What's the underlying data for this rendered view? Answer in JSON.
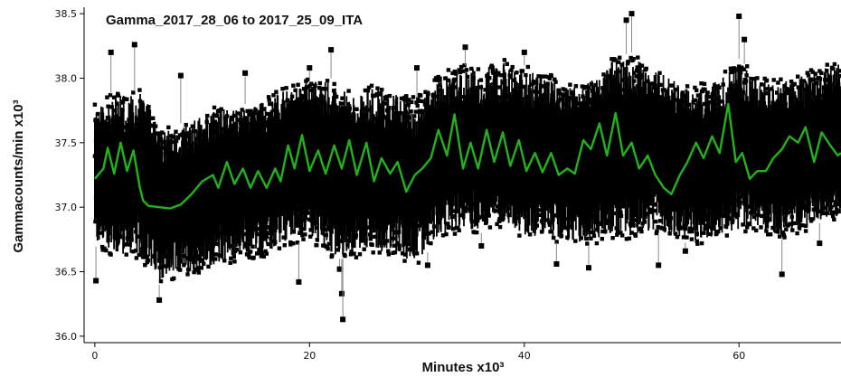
{
  "chart_data": {
    "type": "line",
    "title": "Gamma_2017_28_06 to 2017_25_09_ITA",
    "xlabel": "Minutes x10³",
    "ylabel": "Gammacounts/min x10³",
    "xlim": [
      -1,
      69.5
    ],
    "ylim": [
      35.95,
      38.55
    ],
    "xticks": [
      "0",
      "20",
      "40",
      "60"
    ],
    "xtick_values": [
      0,
      20,
      40,
      60
    ],
    "yticks": [
      "36.0",
      "36.5",
      "37.0",
      "37.5",
      "38.0",
      "38.5"
    ],
    "ytick_values": [
      36.0,
      36.5,
      37.0,
      37.5,
      38.0,
      38.5
    ],
    "grid": false,
    "series": [
      {
        "kind": "raw-measurements",
        "color": "#000000",
        "marker": "square",
        "envelope_x": [
          0,
          2,
          4,
          4.5,
          6,
          8,
          10,
          12,
          14,
          16,
          18,
          20,
          22,
          24,
          26,
          28,
          30,
          32,
          34,
          36,
          38,
          40,
          42,
          44,
          46,
          48,
          50,
          52,
          54,
          56,
          58,
          60,
          62,
          64,
          66,
          68,
          69.5
        ],
        "envelope_low": [
          36.7,
          36.6,
          36.6,
          36.55,
          36.4,
          36.45,
          36.5,
          36.55,
          36.6,
          36.6,
          36.7,
          36.75,
          36.6,
          36.6,
          36.65,
          36.6,
          36.55,
          36.75,
          36.8,
          36.8,
          36.85,
          36.75,
          36.75,
          36.7,
          36.7,
          36.75,
          36.75,
          36.8,
          36.75,
          36.7,
          36.75,
          36.8,
          36.8,
          36.75,
          36.8,
          36.9,
          36.9
        ],
        "envelope_high": [
          37.8,
          37.9,
          37.9,
          37.95,
          37.6,
          37.65,
          37.75,
          37.8,
          37.8,
          37.85,
          37.95,
          38.0,
          38.0,
          37.9,
          37.95,
          37.9,
          37.85,
          38.05,
          38.1,
          38.1,
          38.15,
          38.1,
          38.05,
          37.95,
          38.0,
          38.15,
          38.2,
          38.1,
          38.0,
          37.95,
          38.0,
          38.15,
          38.0,
          38.0,
          38.05,
          38.1,
          38.15
        ],
        "outliers": [
          [
            0.1,
            36.43
          ],
          [
            1.5,
            38.2
          ],
          [
            3.7,
            38.26
          ],
          [
            6.0,
            36.28
          ],
          [
            8.0,
            38.02
          ],
          [
            14.0,
            38.04
          ],
          [
            19.0,
            36.42
          ],
          [
            20.0,
            38.08
          ],
          [
            22.0,
            38.22
          ],
          [
            22.8,
            36.52
          ],
          [
            23.0,
            36.33
          ],
          [
            23.1,
            36.13
          ],
          [
            30.0,
            38.08
          ],
          [
            31.0,
            36.55
          ],
          [
            34.5,
            38.24
          ],
          [
            36.0,
            36.7
          ],
          [
            40.0,
            38.2
          ],
          [
            43.0,
            36.56
          ],
          [
            46.0,
            36.53
          ],
          [
            49.5,
            38.45
          ],
          [
            50.0,
            38.5
          ],
          [
            52.5,
            36.55
          ],
          [
            55.0,
            36.66
          ],
          [
            60.0,
            38.48
          ],
          [
            60.5,
            38.3
          ],
          [
            64.0,
            36.48
          ],
          [
            67.5,
            36.72
          ]
        ]
      },
      {
        "kind": "smoothed-trend",
        "color": "#22b21c",
        "x": [
          0,
          0.8,
          1.2,
          1.8,
          2.4,
          3.0,
          3.6,
          4.2,
          4.5,
          5.0,
          6.0,
          7.0,
          8.0,
          9.0,
          10.0,
          11.0,
          11.5,
          12.3,
          13.0,
          13.8,
          14.5,
          15.2,
          16.0,
          16.8,
          17.3,
          18.0,
          18.6,
          19.3,
          20.0,
          20.8,
          21.5,
          22.3,
          23.0,
          23.7,
          24.4,
          25.3,
          26.0,
          26.7,
          27.5,
          28.2,
          29.0,
          29.8,
          30.5,
          31.3,
          32.0,
          32.8,
          33.5,
          34.3,
          35.0,
          35.7,
          36.5,
          37.2,
          38.0,
          38.7,
          39.5,
          40.2,
          41.0,
          41.7,
          42.5,
          43.2,
          44.0,
          44.7,
          45.5,
          46.2,
          47.0,
          47.7,
          48.5,
          49.2,
          50.0,
          50.7,
          51.5,
          52.2,
          53.0,
          53.7,
          54.5,
          55.2,
          56.0,
          56.7,
          57.5,
          58.2,
          59.0,
          59.7,
          60.3,
          61.0,
          61.7,
          62.5,
          63.2,
          64.0,
          64.7,
          65.5,
          66.2,
          67.0,
          67.7,
          68.5,
          69.2,
          69.5
        ],
        "y": [
          37.22,
          37.3,
          37.46,
          37.26,
          37.5,
          37.28,
          37.44,
          37.15,
          37.05,
          37.01,
          37.0,
          36.99,
          37.02,
          37.1,
          37.2,
          37.25,
          37.15,
          37.35,
          37.18,
          37.3,
          37.15,
          37.28,
          37.15,
          37.3,
          37.2,
          37.48,
          37.3,
          37.56,
          37.28,
          37.44,
          37.26,
          37.48,
          37.3,
          37.52,
          37.25,
          37.5,
          37.2,
          37.38,
          37.26,
          37.35,
          37.12,
          37.25,
          37.3,
          37.38,
          37.6,
          37.4,
          37.72,
          37.3,
          37.5,
          37.3,
          37.6,
          37.35,
          37.58,
          37.32,
          37.52,
          37.28,
          37.42,
          37.27,
          37.42,
          37.25,
          37.3,
          37.26,
          37.52,
          37.45,
          37.65,
          37.4,
          37.73,
          37.4,
          37.5,
          37.3,
          37.4,
          37.25,
          37.15,
          37.1,
          37.25,
          37.35,
          37.5,
          37.38,
          37.55,
          37.42,
          37.8,
          37.35,
          37.42,
          37.22,
          37.28,
          37.28,
          37.38,
          37.45,
          37.55,
          37.5,
          37.62,
          37.35,
          37.58,
          37.48,
          37.4,
          37.42
        ]
      }
    ]
  }
}
